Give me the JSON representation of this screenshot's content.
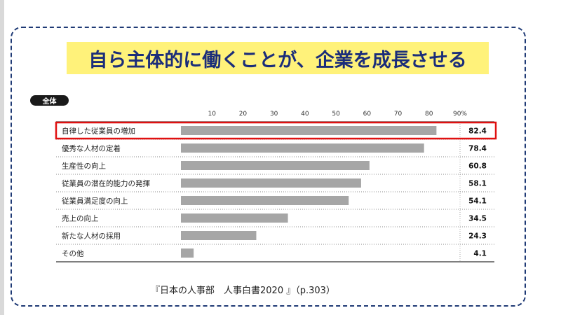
{
  "title": "自ら主体的に働くことが、企業を成長させる",
  "badge": "全体",
  "source": "『日本の人事部　人事白書2020 』（p.303）",
  "colors": {
    "title_bg": "#fff27a",
    "title_text": "#1b2d7a",
    "bar": "#a6a6a6",
    "highlight": "#e01010",
    "frame": "#1f3a75"
  },
  "chart_data": {
    "type": "bar",
    "orientation": "horizontal",
    "title": "",
    "xlabel": "",
    "ylabel": "",
    "xlim": [
      0,
      90
    ],
    "tick_labels": [
      "10",
      "20",
      "30",
      "40",
      "50",
      "60",
      "70",
      "80",
      "90%"
    ],
    "categories": [
      "自律した従業員の増加",
      "優秀な人材の定着",
      "生産性の向上",
      "従業員の潜在的能力の発揮",
      "従業員満足度の向上",
      "売上の向上",
      "新たな人材の採用",
      "その他"
    ],
    "values": [
      82.4,
      78.4,
      60.8,
      58.1,
      54.1,
      34.5,
      24.3,
      4.1
    ],
    "value_labels": [
      "82.4",
      "78.4",
      "60.8",
      "58.1",
      "54.1",
      "34.5",
      "24.3",
      "4.1"
    ],
    "highlighted_category": "自律した従業員の増加",
    "grid": true
  }
}
